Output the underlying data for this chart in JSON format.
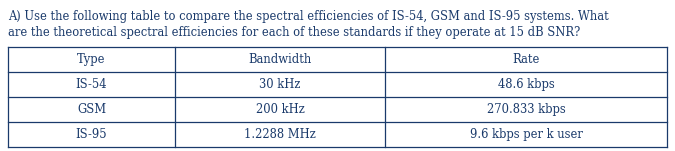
{
  "question_text_line1": "A) Use the following table to compare the spectral efficiencies of IS-54, GSM and IS-95 systems. What",
  "question_text_line2": "are the theoretical spectral efficiencies for each of these standards if they operate at 15 dB SNR?",
  "headers": [
    "Type",
    "Bandwidth",
    "Rate"
  ],
  "rows": [
    [
      "IS-54",
      "30 kHz",
      "48.6 kbps"
    ],
    [
      "GSM",
      "200 kHz",
      "270.833 kbps"
    ],
    [
      "IS-95",
      "1.2288 MHz",
      "9.6 kbps per k user"
    ]
  ],
  "font_size_text": 8.3,
  "font_size_table": 8.3,
  "text_color": "#1a3a6b",
  "bg_color": "#ffffff",
  "table_line_color": "#1a3a6b"
}
